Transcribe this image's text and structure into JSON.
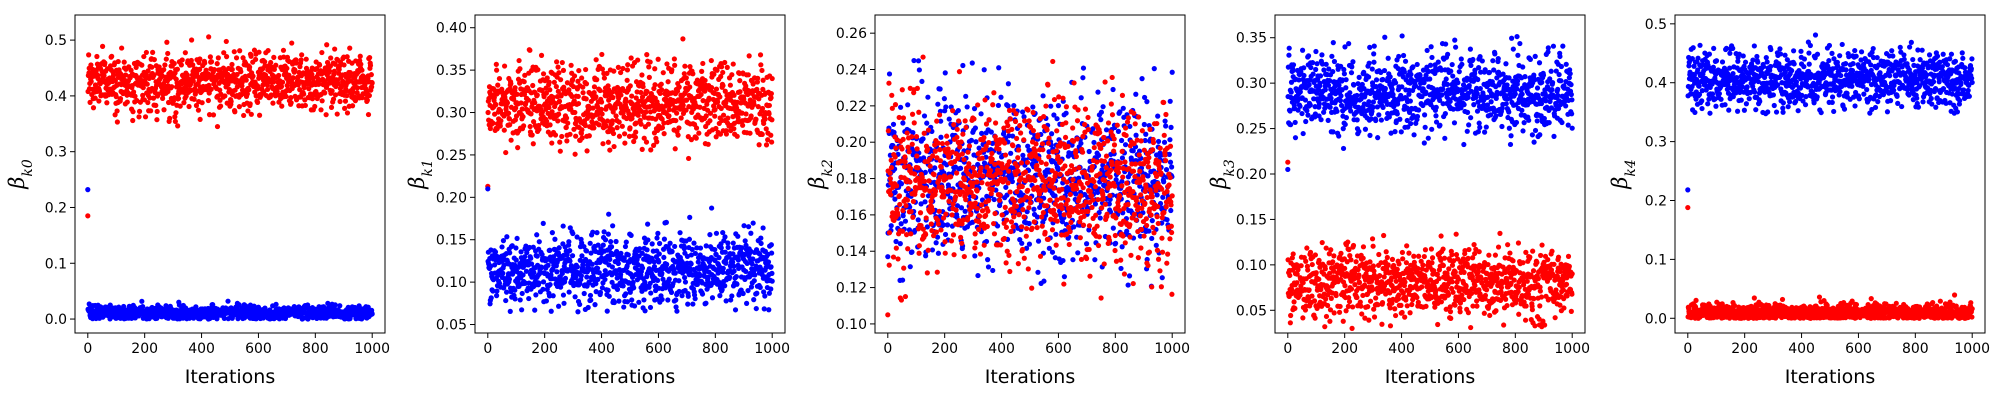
{
  "chart_data": [
    {
      "type": "scatter",
      "ylabel": "β",
      "ylabel_sub": "k0",
      "xlabel": "Iterations",
      "xlim": [
        -45,
        1045
      ],
      "ylim": [
        -0.025,
        0.545
      ],
      "xticks": [
        0,
        200,
        400,
        600,
        800,
        1000
      ],
      "yticks": [
        0.0,
        0.1,
        0.2,
        0.3,
        0.4,
        0.5
      ],
      "ytick_labels": [
        "0.0",
        "0.1",
        "0.2",
        "0.3",
        "0.4",
        "0.5"
      ],
      "series": [
        {
          "color": "#ff0000",
          "initial": 0.185,
          "mean": 0.425,
          "spread": 0.026,
          "min": 0.345,
          "max": 0.52
        },
        {
          "color": "#0000ff",
          "initial": 0.232,
          "mean": 0.011,
          "spread": 0.006,
          "min": 0.0,
          "max": 0.035
        }
      ]
    },
    {
      "type": "scatter",
      "ylabel": "β",
      "ylabel_sub": "k1",
      "xlabel": "Iterations",
      "xlim": [
        -45,
        1045
      ],
      "ylim": [
        0.04,
        0.415
      ],
      "xticks": [
        0,
        200,
        400,
        600,
        800,
        1000
      ],
      "yticks": [
        0.05,
        0.1,
        0.15,
        0.2,
        0.25,
        0.3,
        0.35,
        0.4
      ],
      "ytick_labels": [
        "0.05",
        "0.10",
        "0.15",
        "0.20",
        "0.25",
        "0.30",
        "0.35",
        "0.40"
      ],
      "series": [
        {
          "color": "#ff0000",
          "initial": 0.213,
          "mean": 0.31,
          "spread": 0.024,
          "min": 0.235,
          "max": 0.4
        },
        {
          "color": "#0000ff",
          "initial": 0.21,
          "mean": 0.115,
          "spread": 0.02,
          "min": 0.065,
          "max": 0.19
        }
      ]
    },
    {
      "type": "scatter",
      "ylabel": "β",
      "ylabel_sub": "k2",
      "xlabel": "Iterations",
      "xlim": [
        -45,
        1045
      ],
      "ylim": [
        0.095,
        0.27
      ],
      "xticks": [
        0,
        200,
        400,
        600,
        800,
        1000
      ],
      "yticks": [
        0.1,
        0.12,
        0.14,
        0.16,
        0.18,
        0.2,
        0.22,
        0.24,
        0.26
      ],
      "ytick_labels": [
        "0.10",
        "0.12",
        "0.14",
        "0.16",
        "0.18",
        "0.20",
        "0.22",
        "0.24",
        "0.26"
      ],
      "series": [
        {
          "color": "#0000ff",
          "initial": 0.137,
          "mean": 0.18,
          "spread": 0.022,
          "min": 0.12,
          "max": 0.245
        },
        {
          "color": "#ff0000",
          "initial": 0.105,
          "mean": 0.178,
          "spread": 0.022,
          "min": 0.113,
          "max": 0.264
        }
      ]
    },
    {
      "type": "scatter",
      "ylabel": "β",
      "ylabel_sub": "k3",
      "xlabel": "Iterations",
      "xlim": [
        -45,
        1045
      ],
      "ylim": [
        0.025,
        0.375
      ],
      "xticks": [
        0,
        200,
        400,
        600,
        800,
        1000
      ],
      "yticks": [
        0.05,
        0.1,
        0.15,
        0.2,
        0.25,
        0.3,
        0.35
      ],
      "ytick_labels": [
        "0.05",
        "0.10",
        "0.15",
        "0.20",
        "0.25",
        "0.30",
        "0.35"
      ],
      "series": [
        {
          "color": "#0000ff",
          "initial": 0.205,
          "mean": 0.29,
          "spread": 0.022,
          "min": 0.225,
          "max": 0.36
        },
        {
          "color": "#ff0000",
          "initial": 0.213,
          "mean": 0.08,
          "spread": 0.019,
          "min": 0.03,
          "max": 0.135
        }
      ]
    },
    {
      "type": "scatter",
      "ylabel": "β",
      "ylabel_sub": "k4",
      "xlabel": "Iterations",
      "xlim": [
        -45,
        1045
      ],
      "ylim": [
        -0.025,
        0.515
      ],
      "xticks": [
        0,
        200,
        400,
        600,
        800,
        1000
      ],
      "yticks": [
        0.0,
        0.1,
        0.2,
        0.3,
        0.4,
        0.5
      ],
      "ytick_labels": [
        "0.0",
        "0.1",
        "0.2",
        "0.3",
        "0.4",
        "0.5"
      ],
      "series": [
        {
          "color": "#0000ff",
          "initial": 0.218,
          "mean": 0.405,
          "spread": 0.026,
          "min": 0.345,
          "max": 0.49
        },
        {
          "color": "#ff0000",
          "initial": 0.188,
          "mean": 0.01,
          "spread": 0.007,
          "min": 0.0,
          "max": 0.04
        }
      ]
    }
  ]
}
